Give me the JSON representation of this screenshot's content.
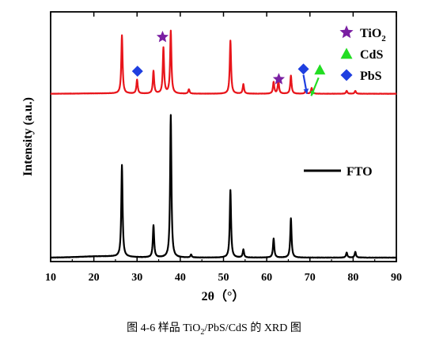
{
  "caption_parts": [
    "图 4-6 样品 TiO",
    "2",
    "/PbS/CdS 的 XRD 图"
  ],
  "chart_data": {
    "type": "line",
    "xlabel": "2θ（°）",
    "ylabel": "Intensity (a.u.)",
    "xlim": [
      10,
      90
    ],
    "xticks": [
      10,
      20,
      30,
      40,
      50,
      60,
      70,
      80,
      90
    ],
    "y_ticks_shown": false,
    "colors": {
      "tio2_pbs_cds": "#e8151b",
      "fto": "#000000",
      "tio2_marker": "#7a1fa2",
      "cds_marker": "#22dd22",
      "pbs_marker": "#1f3fe0"
    },
    "series": [
      {
        "name": "",
        "color": "#e8151b",
        "baseline": 8,
        "noise": 0.15,
        "hump": {
          "center": 22,
          "width": 5,
          "height": 0.5
        },
        "peaks": [
          {
            "x": 26.5,
            "h": 80
          },
          {
            "x": 30.0,
            "h": 19
          },
          {
            "x": 33.8,
            "h": 31
          },
          {
            "x": 36.1,
            "h": 63
          },
          {
            "x": 37.8,
            "h": 86
          },
          {
            "x": 42.0,
            "h": 6
          },
          {
            "x": 51.6,
            "h": 73
          },
          {
            "x": 54.6,
            "h": 13
          },
          {
            "x": 61.6,
            "h": 16
          },
          {
            "x": 62.7,
            "h": 18
          },
          {
            "x": 65.6,
            "h": 25
          },
          {
            "x": 69.0,
            "h": 4
          },
          {
            "x": 70.4,
            "h": 8
          },
          {
            "x": 78.5,
            "h": 4
          },
          {
            "x": 80.5,
            "h": 4
          }
        ]
      },
      {
        "name": "FTO",
        "color": "#000000",
        "baseline": 0,
        "noise": 0.2,
        "hump": {
          "center": 22,
          "width": 5,
          "height": 1.8
        },
        "peaks": [
          {
            "x": 26.5,
            "h": 126
          },
          {
            "x": 33.8,
            "h": 44
          },
          {
            "x": 37.8,
            "h": 196
          },
          {
            "x": 42.5,
            "h": 4
          },
          {
            "x": 51.6,
            "h": 93
          },
          {
            "x": 54.6,
            "h": 11
          },
          {
            "x": 61.6,
            "h": 26
          },
          {
            "x": 65.6,
            "h": 54
          },
          {
            "x": 78.5,
            "h": 7
          },
          {
            "x": 80.5,
            "h": 8
          }
        ]
      }
    ],
    "markers": [
      {
        "phase": "TiO2",
        "shape": "star",
        "x": 35.9,
        "y": 86
      },
      {
        "phase": "TiO2",
        "shape": "star",
        "x": 62.8,
        "y": 28
      },
      {
        "phase": "PbS",
        "shape": "diamond",
        "x": 30.1,
        "y": 39
      },
      {
        "phase": "PbS",
        "shape": "diamond",
        "x": 68.5,
        "y": 42
      },
      {
        "phase": "CdS",
        "shape": "triangle",
        "x": 72.3,
        "y": 41
      }
    ],
    "arrows": [
      {
        "color": "#1f3fe0",
        "from": {
          "x": 68.5,
          "y": 34
        },
        "to": {
          "x": 69.3,
          "y": 8
        }
      },
      {
        "color": "#22dd22",
        "from": {
          "x": 72.0,
          "y": 30
        },
        "to": {
          "x": 70.3,
          "y": 5
        }
      }
    ],
    "legend": [
      {
        "shape": "star",
        "color": "#7a1fa2",
        "label_main": "TiO",
        "label_sub": "2"
      },
      {
        "shape": "triangle",
        "color": "#22dd22",
        "label_main": "CdS",
        "label_sub": ""
      },
      {
        "shape": "diamond",
        "color": "#1f3fe0",
        "label_main": "PbS",
        "label_sub": ""
      }
    ],
    "fto_legend": {
      "label": "FTO",
      "color": "#000000"
    }
  }
}
